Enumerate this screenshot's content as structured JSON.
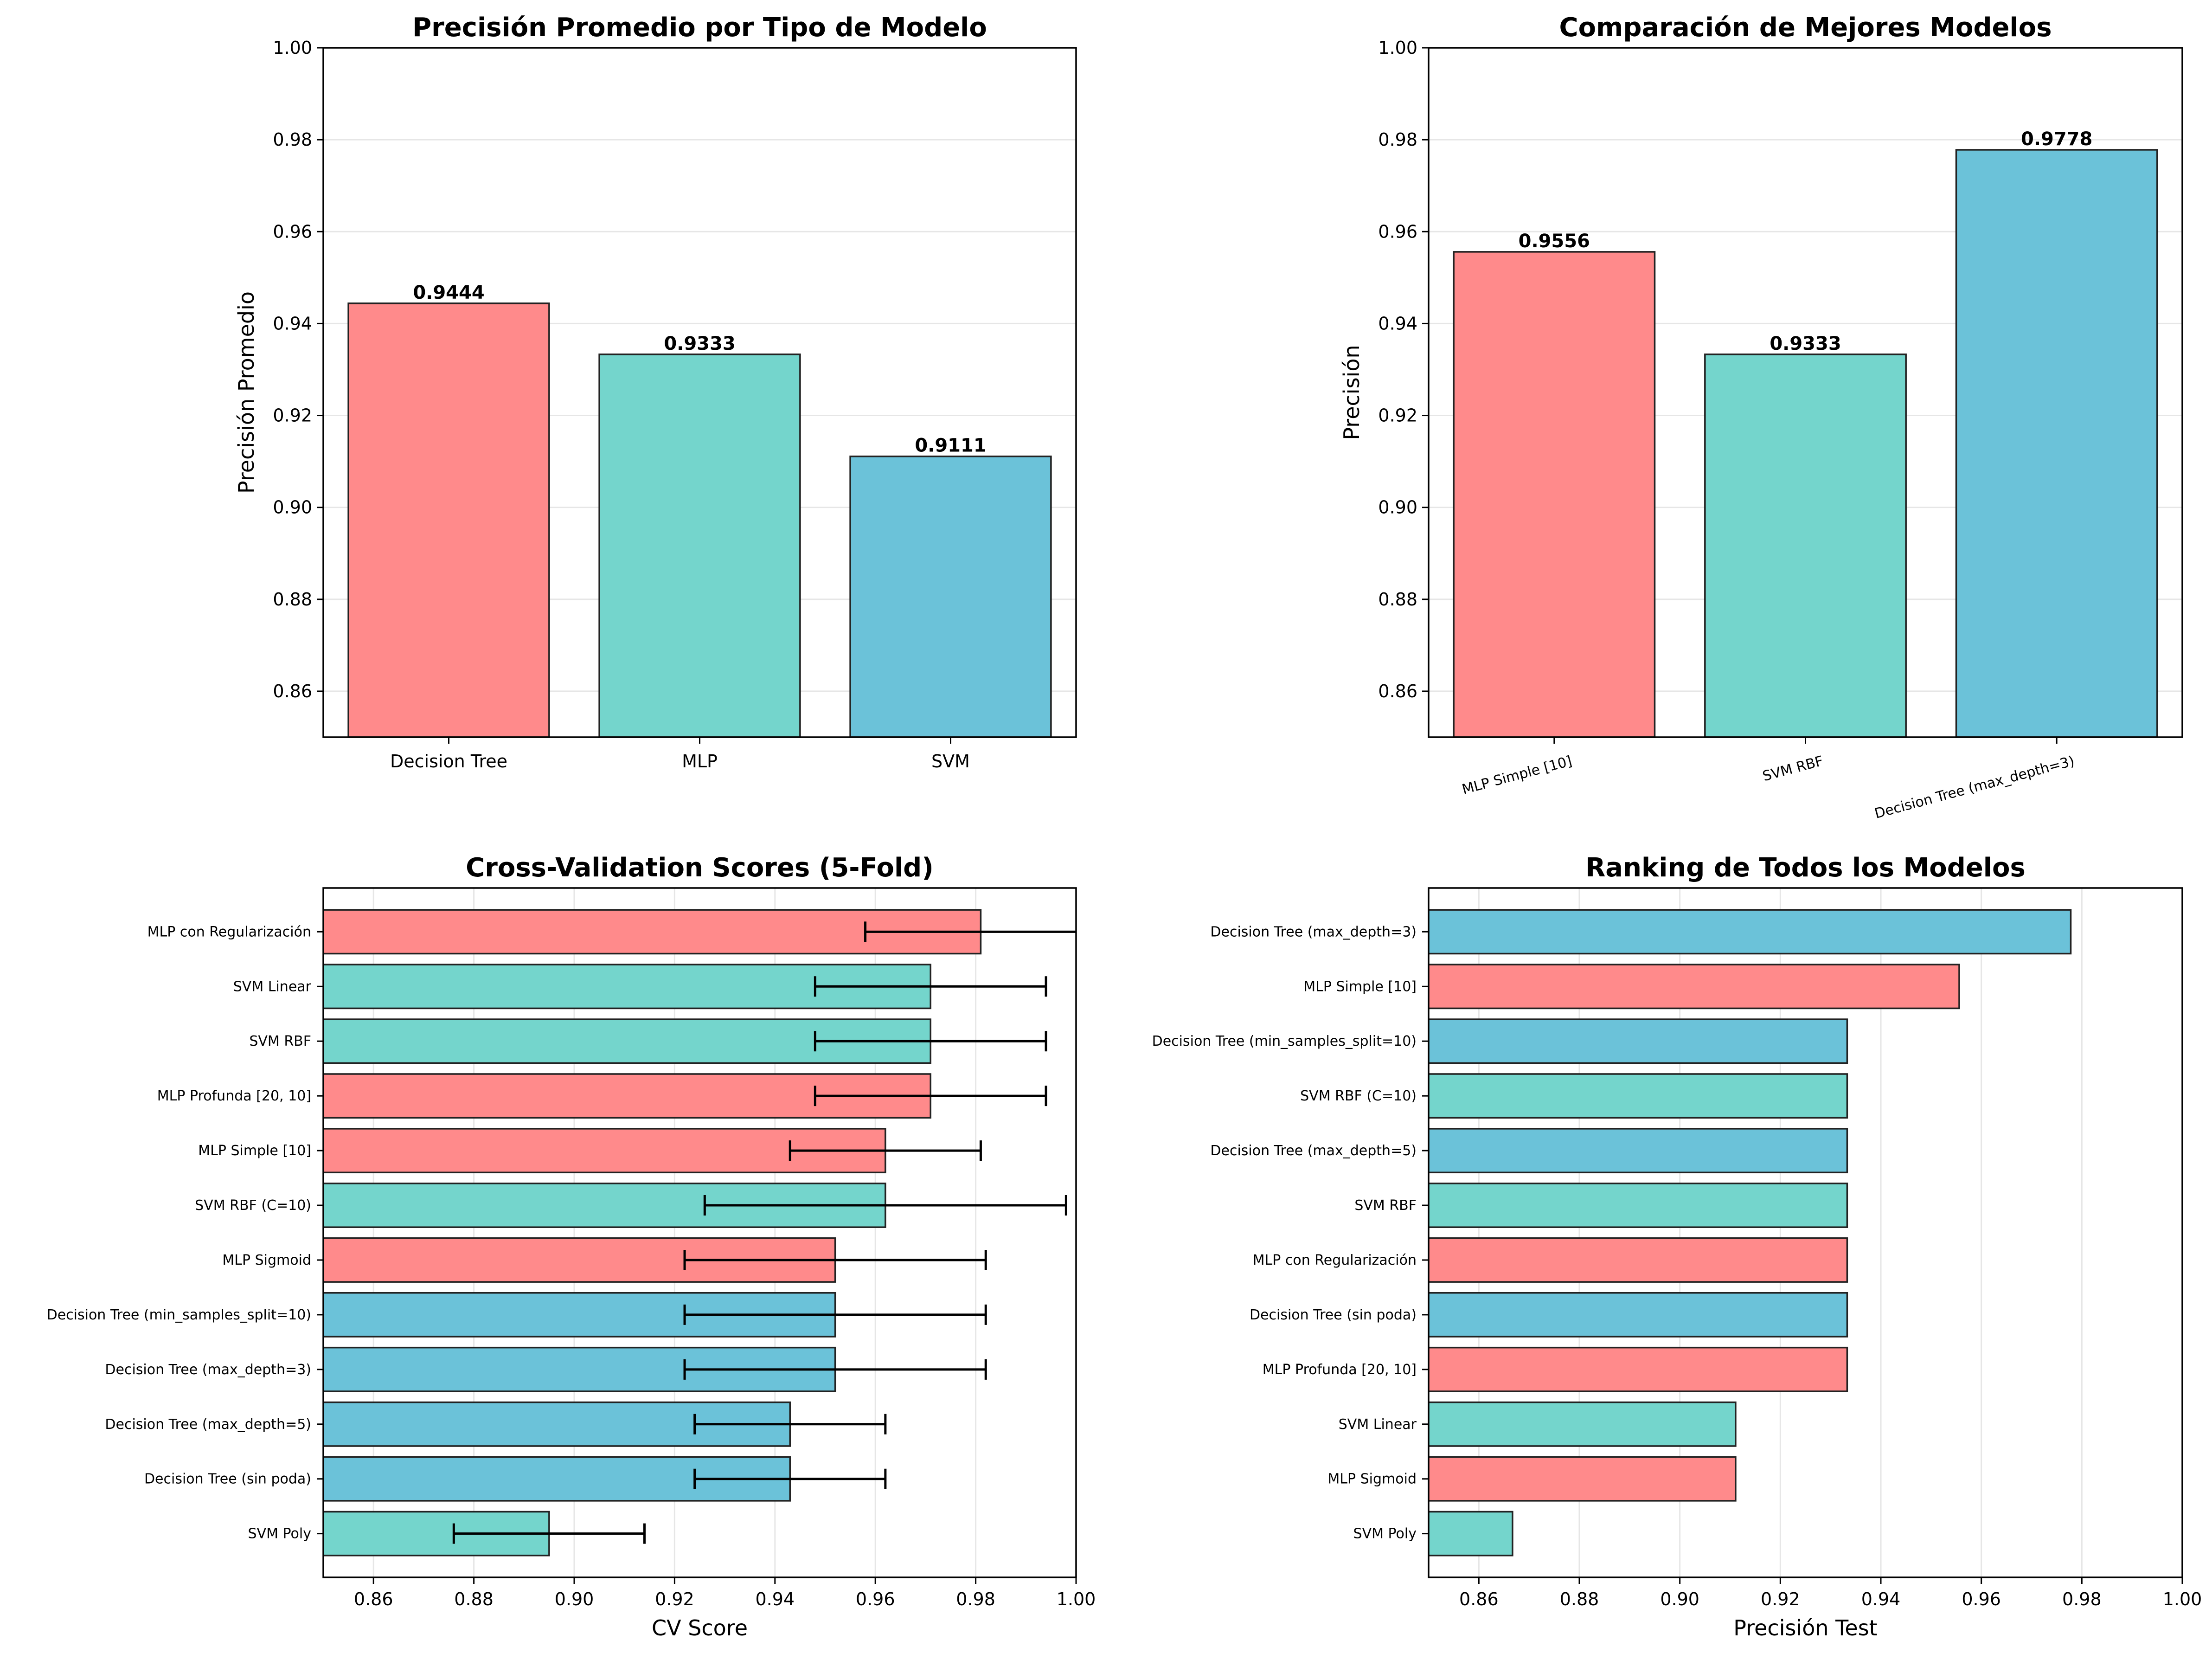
{
  "colors": {
    "decision_tree": "#FF8A8B",
    "mlp": "#74D5CC",
    "svm": "#6BC2D9",
    "edge": "#222222",
    "grid": "#e6e6e6"
  },
  "chart_data": [
    {
      "type": "bar",
      "title": "Precisión Promedio por Tipo de Modelo",
      "xlabel": "",
      "ylabel": "Precisión Promedio",
      "categories": [
        "Decision Tree",
        "MLP",
        "SVM"
      ],
      "values": [
        0.9444,
        0.9333,
        0.9111
      ],
      "value_labels": [
        "0.9444",
        "0.9333",
        "0.9111"
      ],
      "bar_colors": [
        "#FF8A8B",
        "#74D5CC",
        "#6BC2D9"
      ],
      "ylim": [
        0.85,
        1.0
      ],
      "yticks": [
        0.86,
        0.88,
        0.9,
        0.92,
        0.94,
        0.96,
        0.98,
        1.0
      ],
      "ytick_labels": [
        "0.86",
        "0.88",
        "0.90",
        "0.92",
        "0.94",
        "0.96",
        "0.98",
        "1.00"
      ],
      "grid": "y"
    },
    {
      "type": "bar",
      "title": "Comparación de Mejores Modelos",
      "xlabel": "",
      "ylabel": "Precisión",
      "categories": [
        "MLP Simple [10]",
        "SVM RBF",
        "Decision Tree (max_depth=3)"
      ],
      "values": [
        0.9556,
        0.9333,
        0.9778
      ],
      "value_labels": [
        "0.9556",
        "0.9333",
        "0.9778"
      ],
      "bar_colors": [
        "#FF8A8B",
        "#74D5CC",
        "#6BC2D9"
      ],
      "ylim": [
        0.85,
        1.0
      ],
      "yticks": [
        0.86,
        0.88,
        0.9,
        0.92,
        0.94,
        0.96,
        0.98,
        1.0
      ],
      "ytick_labels": [
        "0.86",
        "0.88",
        "0.90",
        "0.92",
        "0.94",
        "0.96",
        "0.98",
        "1.00"
      ],
      "xtick_rotation": 15,
      "grid": "y"
    },
    {
      "type": "bar",
      "orientation": "horizontal",
      "title": "Cross-Validation Scores (5-Fold)",
      "xlabel": "CV Score",
      "ylabel": "",
      "categories": [
        "MLP con Regularización",
        "SVM Linear",
        "SVM RBF",
        "MLP Profunda [20, 10]",
        "MLP Simple [10]",
        "SVM RBF (C=10)",
        "MLP Sigmoid",
        "Decision Tree (min_samples_split=10)",
        "Decision Tree (max_depth=3)",
        "Decision Tree (max_depth=5)",
        "Decision Tree (sin poda)",
        "SVM Poly"
      ],
      "values": [
        0.981,
        0.971,
        0.971,
        0.971,
        0.962,
        0.962,
        0.952,
        0.952,
        0.952,
        0.943,
        0.943,
        0.895
      ],
      "errors": [
        0.023,
        0.023,
        0.023,
        0.023,
        0.019,
        0.036,
        0.03,
        0.03,
        0.03,
        0.019,
        0.019,
        0.019
      ],
      "bar_colors": [
        "#FF8A8B",
        "#74D5CC",
        "#74D5CC",
        "#FF8A8B",
        "#FF8A8B",
        "#74D5CC",
        "#FF8A8B",
        "#6BC2D9",
        "#6BC2D9",
        "#6BC2D9",
        "#6BC2D9",
        "#74D5CC"
      ],
      "xlim": [
        0.85,
        1.0
      ],
      "xticks": [
        0.86,
        0.88,
        0.9,
        0.92,
        0.94,
        0.96,
        0.98,
        1.0
      ],
      "xtick_labels": [
        "0.86",
        "0.88",
        "0.90",
        "0.92",
        "0.94",
        "0.96",
        "0.98",
        "1.00"
      ],
      "grid": "x"
    },
    {
      "type": "bar",
      "orientation": "horizontal",
      "title": "Ranking de Todos los Modelos",
      "xlabel": "Precisión Test",
      "ylabel": "",
      "categories": [
        "Decision Tree (max_depth=3)",
        "MLP Simple [10]",
        "Decision Tree (min_samples_split=10)",
        "SVM RBF (C=10)",
        "Decision Tree (max_depth=5)",
        "SVM RBF",
        "MLP con Regularización",
        "Decision Tree (sin poda)",
        "MLP Profunda [20, 10]",
        "SVM Linear",
        "MLP Sigmoid",
        "SVM Poly"
      ],
      "values": [
        0.9778,
        0.9556,
        0.9333,
        0.9333,
        0.9333,
        0.9333,
        0.9333,
        0.9333,
        0.9333,
        0.9111,
        0.9111,
        0.8667
      ],
      "bar_colors": [
        "#6BC2D9",
        "#FF8A8B",
        "#6BC2D9",
        "#74D5CC",
        "#6BC2D9",
        "#74D5CC",
        "#FF8A8B",
        "#6BC2D9",
        "#FF8A8B",
        "#74D5CC",
        "#FF8A8B",
        "#74D5CC"
      ],
      "xlim": [
        0.85,
        1.0
      ],
      "xticks": [
        0.86,
        0.88,
        0.9,
        0.92,
        0.94,
        0.96,
        0.98,
        1.0
      ],
      "xtick_labels": [
        "0.86",
        "0.88",
        "0.90",
        "0.92",
        "0.94",
        "0.96",
        "0.98",
        "1.00"
      ],
      "grid": "x"
    }
  ]
}
